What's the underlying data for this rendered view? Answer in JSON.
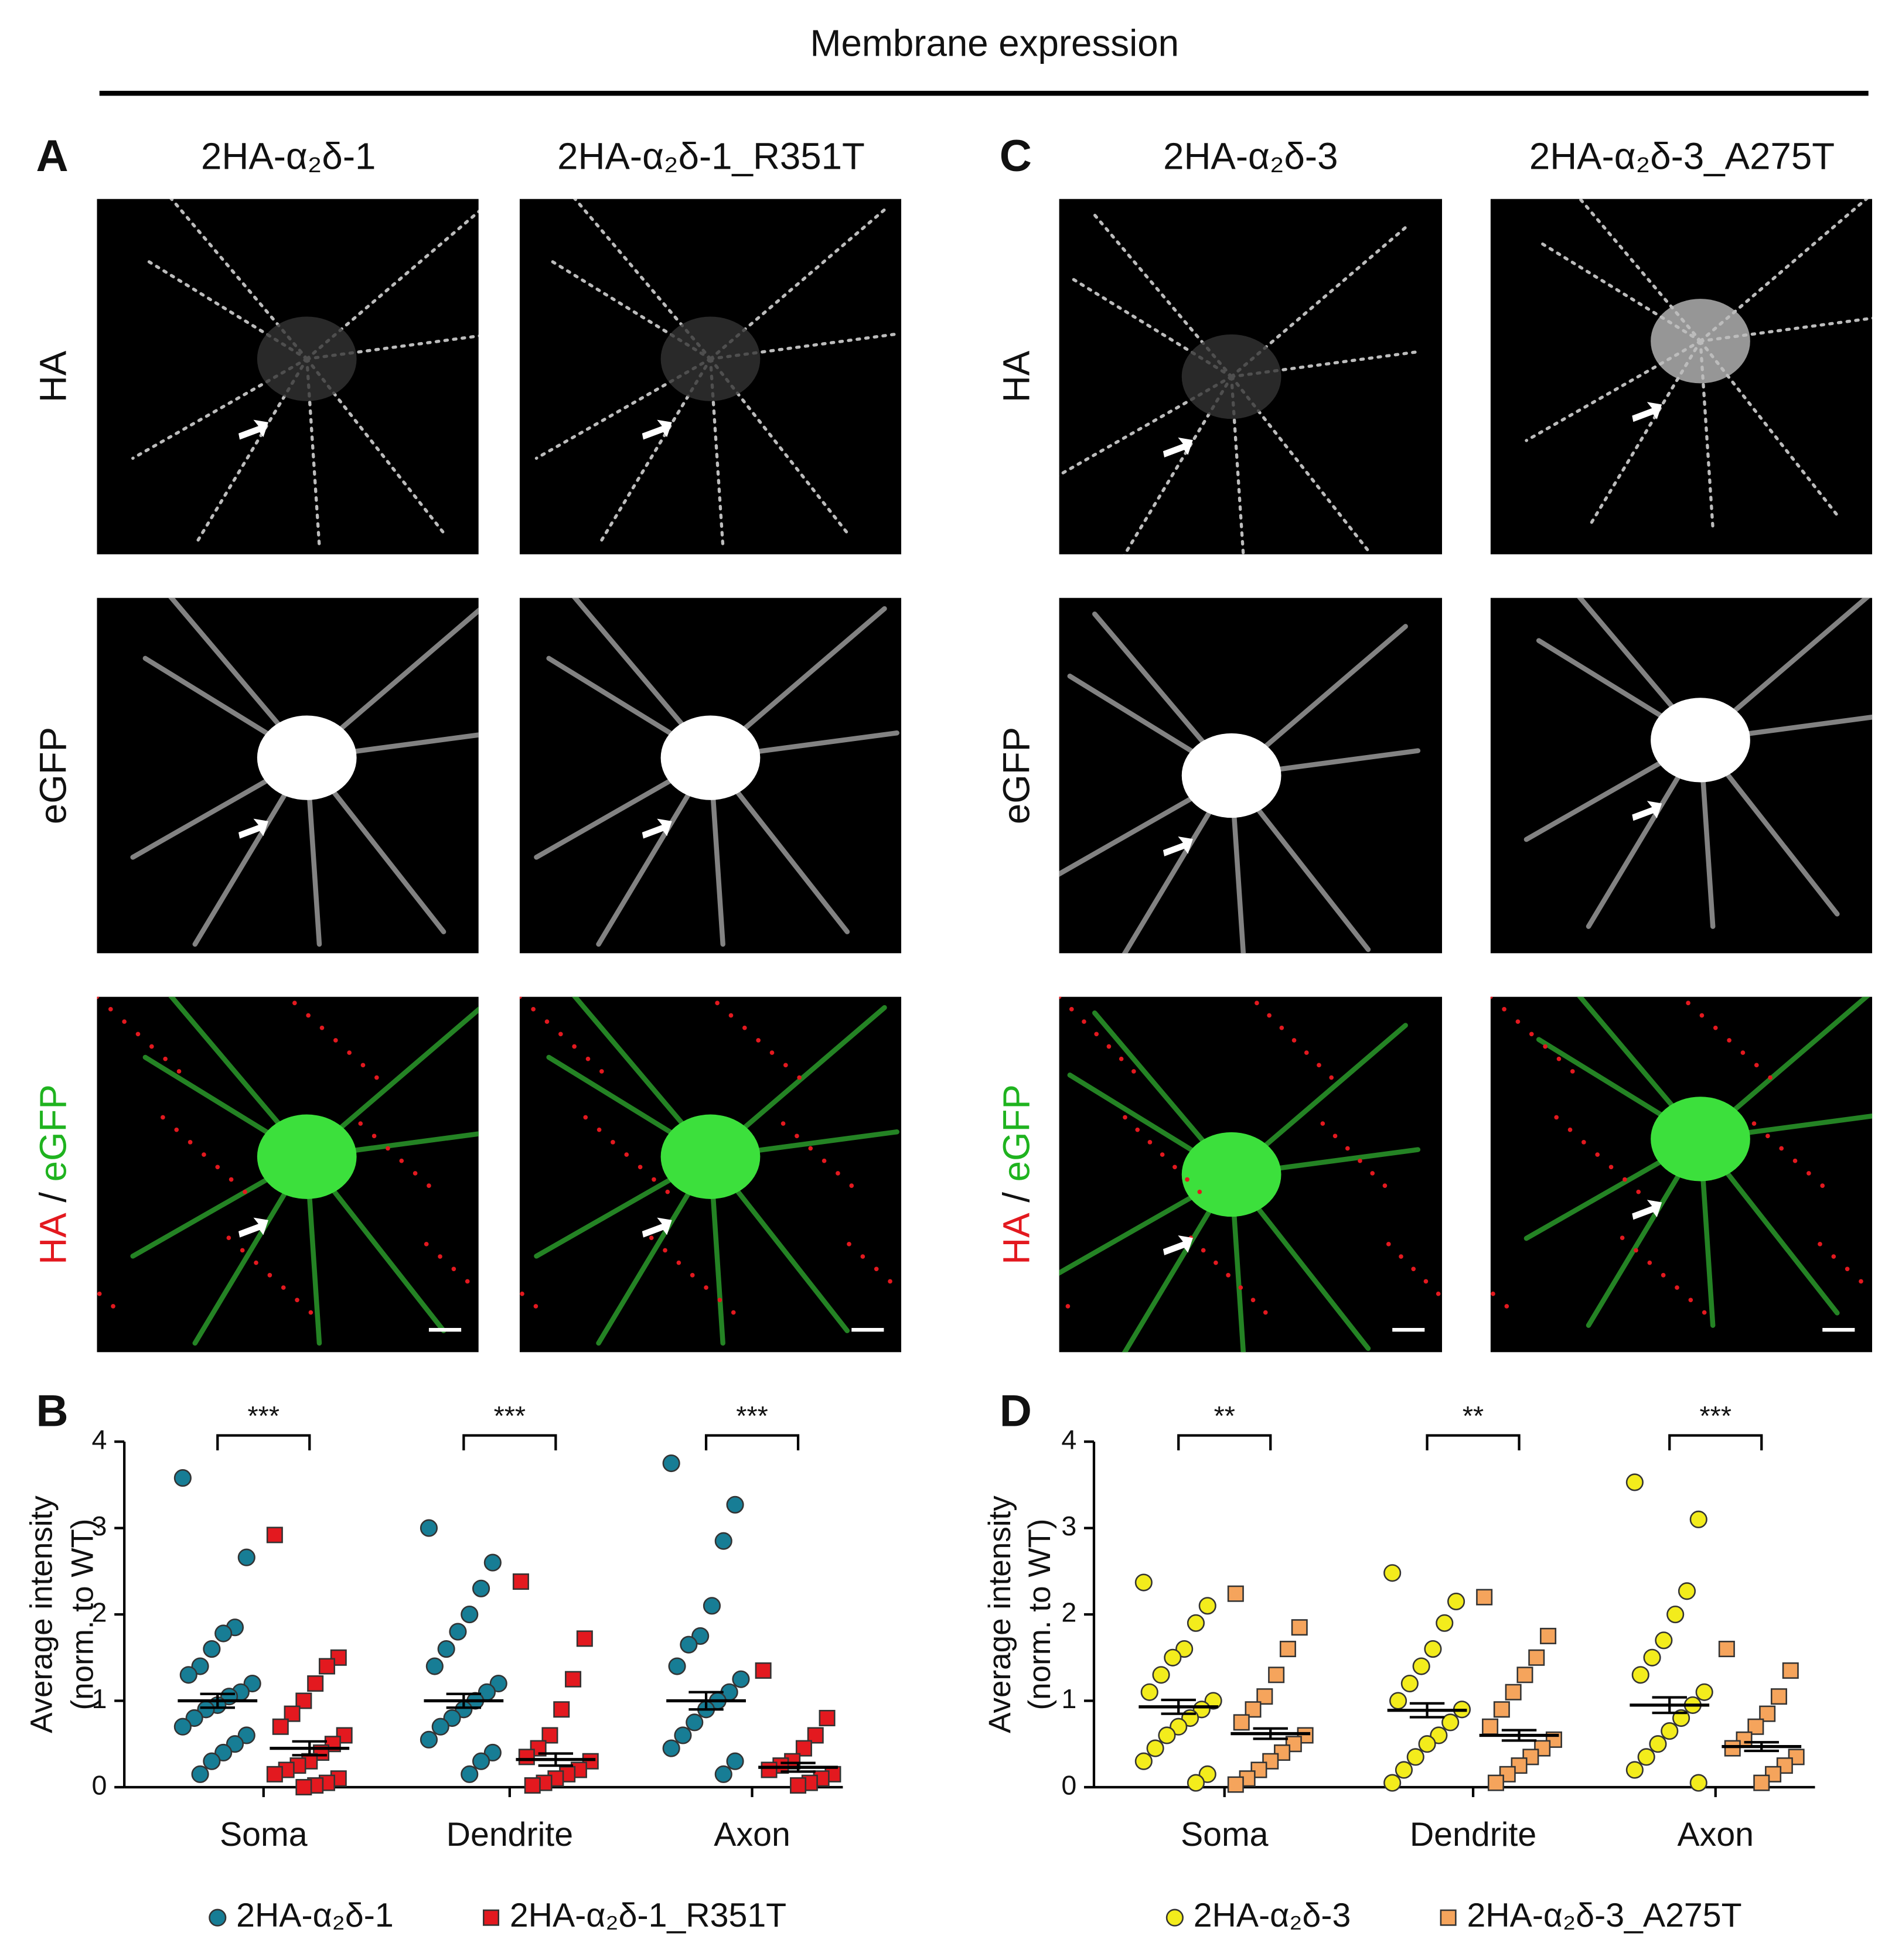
{
  "title": "Membrane expression",
  "panel_labels": [
    "A",
    "B",
    "C",
    "D"
  ],
  "column_headers": [
    "2HA-α₂δ-1",
    "2HA-α₂δ-1_R351T",
    "2HA-α₂δ-3",
    "2HA-α₂δ-3_A275T"
  ],
  "row_labels": [
    "HA",
    "eGFP"
  ],
  "merge_label": [
    "HA",
    "/",
    "eGFP"
  ],
  "chart_data": [
    {
      "type": "strip",
      "categories": [
        "Soma",
        "Dendrite",
        "Axon"
      ],
      "ylabel": [
        "Average intensity",
        "(norm. to WT)"
      ],
      "ylim": [
        0,
        4
      ],
      "yticks": [
        0,
        1,
        2,
        3,
        4
      ],
      "significance": [
        "***",
        "***",
        "***"
      ],
      "legend": "bottom",
      "series": [
        {
          "name": "2HA-α₂δ-1",
          "color": "#177d95",
          "marker": "circle",
          "values": [
            [
              3.58,
              2.66,
              1.85,
              1.78,
              1.6,
              1.4,
              1.3,
              1.2,
              1.1,
              1.05,
              0.95,
              0.9,
              0.8,
              0.7,
              0.6,
              0.5,
              0.4,
              0.3,
              0.15
            ],
            [
              3.0,
              2.6,
              2.3,
              2.0,
              1.8,
              1.6,
              1.4,
              1.2,
              1.1,
              1.0,
              0.9,
              0.8,
              0.7,
              0.55,
              0.4,
              0.3,
              0.15
            ],
            [
              3.75,
              3.27,
              2.85,
              2.1,
              1.75,
              1.65,
              1.4,
              1.25,
              1.1,
              1.0,
              0.9,
              0.75,
              0.6,
              0.45,
              0.3,
              0.15
            ]
          ],
          "mean": [
            1.0,
            1.0,
            1.0
          ],
          "sem": [
            0.08,
            0.08,
            0.1
          ]
        },
        {
          "name": "2HA-α₂δ-1_R351T",
          "color": "#e3191f",
          "marker": "square",
          "values": [
            [
              2.92,
              1.5,
              1.4,
              1.2,
              1.0,
              0.85,
              0.7,
              0.6,
              0.5,
              0.4,
              0.3,
              0.25,
              0.2,
              0.15,
              0.1,
              0.05,
              0.02,
              0.0
            ],
            [
              2.38,
              1.72,
              1.25,
              0.9,
              0.6,
              0.45,
              0.35,
              0.3,
              0.2,
              0.15,
              0.1,
              0.05,
              0.02
            ],
            [
              1.35,
              0.8,
              0.6,
              0.45,
              0.3,
              0.25,
              0.2,
              0.15,
              0.1,
              0.05,
              0.02
            ]
          ],
          "mean": [
            0.45,
            0.32,
            0.23
          ],
          "sem": [
            0.08,
            0.07,
            0.05
          ]
        }
      ]
    },
    {
      "type": "strip",
      "categories": [
        "Soma",
        "Dendrite",
        "Axon"
      ],
      "ylabel": [
        "Average intensity",
        "(norm. to WT)"
      ],
      "ylim": [
        0,
        4
      ],
      "yticks": [
        0,
        1,
        2,
        3,
        4
      ],
      "significance": [
        "**",
        "**",
        "***"
      ],
      "legend": "bottom",
      "series": [
        {
          "name": "2HA-α₂δ-3",
          "color": "#f3ec1c",
          "marker": "circle",
          "values": [
            [
              2.37,
              2.1,
              1.9,
              1.6,
              1.5,
              1.3,
              1.1,
              1.0,
              0.9,
              0.8,
              0.7,
              0.6,
              0.45,
              0.3,
              0.15,
              0.05
            ],
            [
              2.48,
              2.15,
              1.9,
              1.6,
              1.4,
              1.2,
              1.0,
              0.9,
              0.75,
              0.6,
              0.5,
              0.35,
              0.2,
              0.05
            ],
            [
              3.53,
              3.1,
              2.27,
              2.0,
              1.7,
              1.5,
              1.3,
              1.1,
              0.95,
              0.8,
              0.65,
              0.5,
              0.35,
              0.2,
              0.05
            ]
          ],
          "mean": [
            0.93,
            0.89,
            0.95
          ],
          "sem": [
            0.08,
            0.08,
            0.09
          ]
        },
        {
          "name": "2HA-α₂δ-3_A275T",
          "color": "#f5a45c",
          "marker": "square",
          "values": [
            [
              2.24,
              1.85,
              1.6,
              1.3,
              1.05,
              0.9,
              0.75,
              0.6,
              0.5,
              0.4,
              0.3,
              0.2,
              0.1,
              0.03
            ],
            [
              2.2,
              1.75,
              1.5,
              1.3,
              1.1,
              0.9,
              0.7,
              0.55,
              0.45,
              0.35,
              0.25,
              0.15,
              0.05
            ],
            [
              1.6,
              1.35,
              1.05,
              0.85,
              0.7,
              0.55,
              0.45,
              0.35,
              0.25,
              0.15,
              0.05
            ]
          ],
          "mean": [
            0.62,
            0.6,
            0.47
          ],
          "sem": [
            0.06,
            0.06,
            0.05
          ]
        }
      ]
    }
  ]
}
